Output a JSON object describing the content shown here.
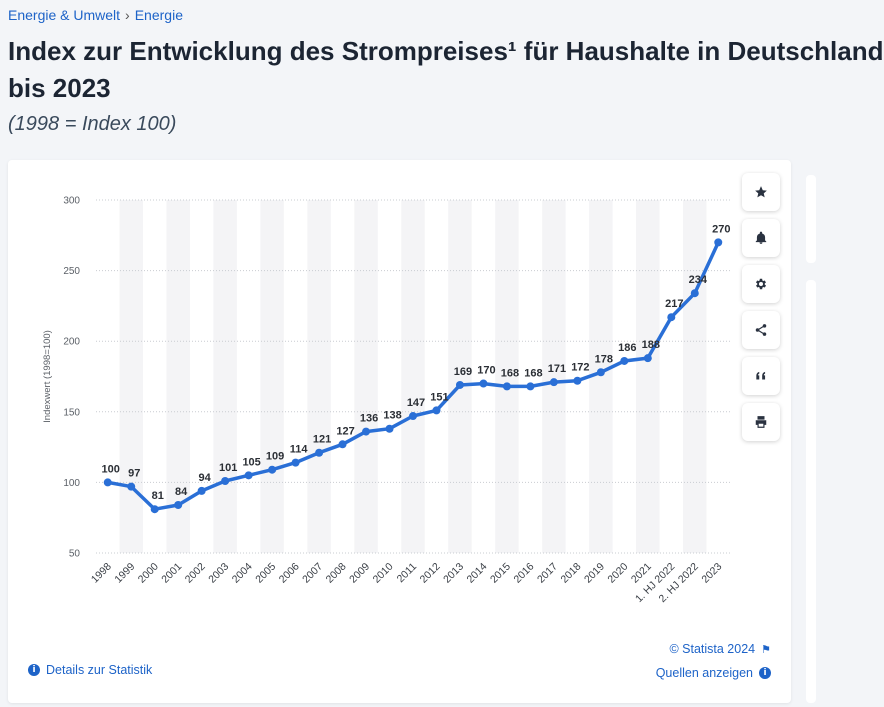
{
  "breadcrumb": {
    "item1": "Energie & Umwelt",
    "separator": "›",
    "item2": "Energie"
  },
  "header": {
    "title": "Index zur Entwicklung des Strompreises¹ für Haushalte in Deutschland",
    "title_line2": "bis 2023",
    "subtitle": "(1998 = Index 100)"
  },
  "toolbar": {
    "icons": [
      "star-icon",
      "bell-icon",
      "gear-icon",
      "share-icon",
      "quote-icon",
      "print-icon"
    ]
  },
  "footer": {
    "details_label": "Details zur Statistik",
    "copyright": "© Statista 2024",
    "sources_label": "Quellen anzeigen"
  },
  "colors": {
    "line": "#2a6fd6",
    "accent": "#1d63c8",
    "band": "#f4f4f6",
    "grid": "#c9ccd1"
  },
  "chart_data": {
    "type": "line",
    "title": "Index zur Entwicklung des Strompreises¹ für Haushalte in Deutschland bis 2023",
    "ylabel": "Indexwert (1998=100)",
    "xlabel": "",
    "ylim": [
      50,
      300
    ],
    "yticks": [
      300,
      250,
      200,
      150,
      100,
      50
    ],
    "grid": true,
    "categories": [
      "1998",
      "1999",
      "2000",
      "2001",
      "2002",
      "2003",
      "2004",
      "2005",
      "2006",
      "2007",
      "2008",
      "2009",
      "2010",
      "2011",
      "2012",
      "2013",
      "2014",
      "2015",
      "2016",
      "2017",
      "2018",
      "2019",
      "2020",
      "2021",
      "1. HJ 2022",
      "2. HJ 2022",
      "2023"
    ],
    "values": [
      100,
      97,
      81,
      84,
      94,
      101,
      105,
      109,
      114,
      121,
      127,
      136,
      138,
      147,
      151,
      169,
      170,
      168,
      168,
      171,
      172,
      178,
      186,
      188,
      217,
      234,
      270
    ]
  }
}
